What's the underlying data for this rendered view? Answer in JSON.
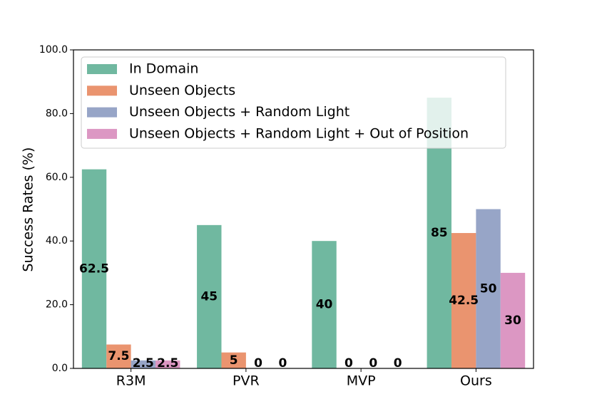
{
  "chart_data": {
    "type": "bar",
    "title": "",
    "xlabel": "",
    "ylabel": "Success Rates (%)",
    "ylim": [
      0,
      100
    ],
    "yticks": [
      "0.0",
      "20.0",
      "40.0",
      "60.0",
      "80.0",
      "100.0"
    ],
    "categories": [
      "R3M",
      "PVR",
      "MVP",
      "Ours"
    ],
    "series": [
      {
        "name": "In Domain",
        "color": "#70b8a0",
        "values": [
          62.5,
          45,
          40,
          85
        ],
        "labels": [
          "62.5",
          "45",
          "40",
          "85"
        ]
      },
      {
        "name": "Unseen Objects",
        "color": "#ea946f",
        "values": [
          7.5,
          5,
          0,
          42.5
        ],
        "labels": [
          "7.5",
          "5",
          "0",
          "42.5"
        ]
      },
      {
        "name": "Unseen Objects + Random Light",
        "color": "#97a5c7",
        "values": [
          2.5,
          0,
          0,
          50
        ],
        "labels": [
          "2.5",
          "0",
          "0",
          "50"
        ]
      },
      {
        "name": "Unseen Objects + Random Light + Out of Position",
        "color": "#dc97c3",
        "values": [
          2.5,
          0,
          0,
          30
        ],
        "labels": [
          "2.5",
          "0",
          "0",
          "30"
        ]
      }
    ],
    "grid": false,
    "legend_position": "top-left"
  }
}
